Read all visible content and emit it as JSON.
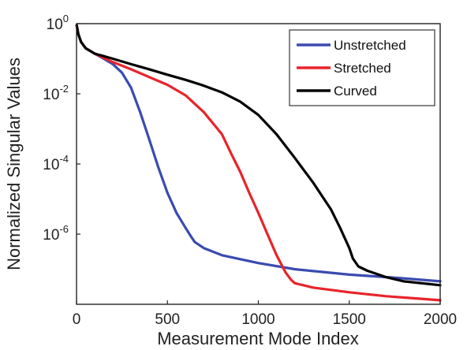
{
  "chart_data": {
    "type": "line",
    "xlabel": "Measurement Mode Index",
    "ylabel": "Normalized Singular Values",
    "xlim": [
      0,
      2000
    ],
    "ylim": [
      1e-08,
      1
    ],
    "yscale": "log",
    "grid": false,
    "legend_position": "top-right",
    "x_ticks": [
      {
        "value": 0,
        "label": "0"
      },
      {
        "value": 500,
        "label": "500"
      },
      {
        "value": 1000,
        "label": "1000"
      },
      {
        "value": 1500,
        "label": "1500"
      },
      {
        "value": 2000,
        "label": "2000"
      }
    ],
    "y_ticks": [
      {
        "value": 1,
        "base": "10",
        "exp": "0"
      },
      {
        "value": 0.01,
        "base": "10",
        "exp": "-2"
      },
      {
        "value": 0.0001,
        "base": "10",
        "exp": "-4"
      },
      {
        "value": 1e-06,
        "base": "10",
        "exp": "-6"
      }
    ],
    "series": [
      {
        "name": "Unstretched",
        "color": "#3a4bb0",
        "points": [
          [
            1,
            0.9
          ],
          [
            10,
            0.5
          ],
          [
            25,
            0.3
          ],
          [
            50,
            0.2
          ],
          [
            100,
            0.14
          ],
          [
            150,
            0.1
          ],
          [
            200,
            0.07
          ],
          [
            250,
            0.04
          ],
          [
            300,
            0.015
          ],
          [
            350,
            0.003
          ],
          [
            400,
            0.0005
          ],
          [
            450,
            8e-05
          ],
          [
            500,
            1.5e-05
          ],
          [
            550,
            4e-06
          ],
          [
            600,
            1.5e-06
          ],
          [
            630,
            8.5e-07
          ],
          [
            650,
            6e-07
          ],
          [
            700,
            4e-07
          ],
          [
            800,
            2.5e-07
          ],
          [
            1000,
            1.5e-07
          ],
          [
            1200,
            1e-07
          ],
          [
            1500,
            7e-08
          ],
          [
            1800,
            5.5e-08
          ],
          [
            2000,
            4.5e-08
          ]
        ]
      },
      {
        "name": "Stretched",
        "color": "#e8242a",
        "points": [
          [
            1,
            0.9
          ],
          [
            10,
            0.5
          ],
          [
            25,
            0.3
          ],
          [
            50,
            0.2
          ],
          [
            100,
            0.14
          ],
          [
            200,
            0.08
          ],
          [
            300,
            0.05
          ],
          [
            400,
            0.03
          ],
          [
            500,
            0.018
          ],
          [
            600,
            0.009
          ],
          [
            700,
            0.003
          ],
          [
            800,
            0.0007
          ],
          [
            850,
            0.0002
          ],
          [
            900,
            6e-05
          ],
          [
            950,
            1.5e-05
          ],
          [
            1000,
            4e-06
          ],
          [
            1050,
            1e-06
          ],
          [
            1100,
            2.5e-07
          ],
          [
            1150,
            8e-08
          ],
          [
            1180,
            5e-08
          ],
          [
            1200,
            4e-08
          ],
          [
            1300,
            3e-08
          ],
          [
            1500,
            2.2e-08
          ],
          [
            1700,
            1.7e-08
          ],
          [
            2000,
            1.3e-08
          ]
        ]
      },
      {
        "name": "Curved",
        "color": "#000000",
        "points": [
          [
            1,
            0.9
          ],
          [
            10,
            0.5
          ],
          [
            25,
            0.3
          ],
          [
            50,
            0.2
          ],
          [
            100,
            0.14
          ],
          [
            200,
            0.1
          ],
          [
            300,
            0.07
          ],
          [
            400,
            0.05
          ],
          [
            500,
            0.035
          ],
          [
            600,
            0.025
          ],
          [
            700,
            0.017
          ],
          [
            800,
            0.011
          ],
          [
            900,
            0.006
          ],
          [
            1000,
            0.0025
          ],
          [
            1100,
            0.0007
          ],
          [
            1200,
            0.00015
          ],
          [
            1300,
            3e-05
          ],
          [
            1400,
            5e-06
          ],
          [
            1450,
            1.5e-06
          ],
          [
            1500,
            4e-07
          ],
          [
            1520,
            2e-07
          ],
          [
            1550,
            1.2e-07
          ],
          [
            1600,
            9e-08
          ],
          [
            1700,
            6e-08
          ],
          [
            1800,
            4.5e-08
          ],
          [
            2000,
            3.5e-08
          ]
        ]
      }
    ]
  }
}
